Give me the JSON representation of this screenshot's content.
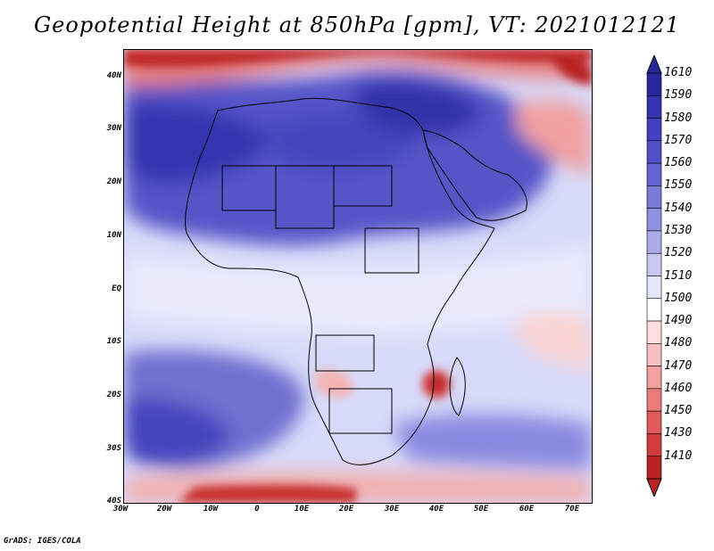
{
  "title": "Geopotential Height at 850hPa [gpm], VT: 2021012121",
  "footer": "GrADS: IGES/COLA",
  "axes": {
    "y_ticks": [
      "40N",
      "30N",
      "20N",
      "10N",
      "EQ",
      "10S",
      "20S",
      "30S",
      "40S"
    ],
    "x_ticks": [
      "30W",
      "20W",
      "10W",
      "0",
      "10E",
      "20E",
      "30E",
      "40E",
      "50E",
      "60E",
      "70E"
    ]
  },
  "colorbar": {
    "levels": [
      "1610",
      "1590",
      "1580",
      "1570",
      "1560",
      "1550",
      "1540",
      "1530",
      "1520",
      "1510",
      "1500",
      "1490",
      "1480",
      "1470",
      "1460",
      "1450",
      "1430",
      "1410"
    ],
    "colors": [
      "#27279c",
      "#3333b0",
      "#4040c0",
      "#5050c8",
      "#6464d0",
      "#7a7ad8",
      "#9090e0",
      "#acacea",
      "#c8c8f2",
      "#e4e6fc",
      "#ffffff",
      "#fddede",
      "#f8c0c0",
      "#f2a0a0",
      "#ea7c7c",
      "#e05a5a",
      "#d23c3c",
      "#b82222"
    ]
  }
}
